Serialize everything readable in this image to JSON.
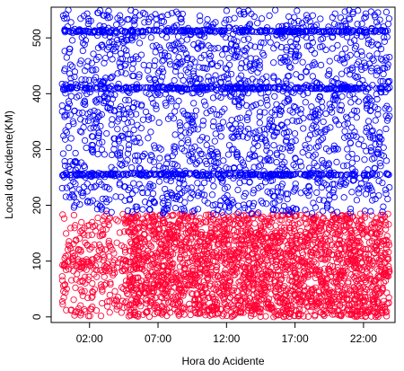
{
  "chart_data": {
    "type": "scatter",
    "xlabel": "Hora do Acidente",
    "ylabel": "Local do Acidente(KM)",
    "x_unit": "hour of day",
    "xlim": [
      -0.8,
      24.3
    ],
    "ylim": [
      -10,
      555
    ],
    "x_ticks": [
      {
        "value": 2,
        "label": "02:00"
      },
      {
        "value": 7,
        "label": "07:00"
      },
      {
        "value": 12,
        "label": "12:00"
      },
      {
        "value": 17,
        "label": "17:00"
      },
      {
        "value": 22,
        "label": "22:00"
      }
    ],
    "y_ticks": [
      0,
      100,
      200,
      300,
      400,
      500
    ],
    "grid": false,
    "marker": "open-circle",
    "series": [
      {
        "color": "#FF0033",
        "y_range": [
          0,
          185
        ],
        "x_range": [
          0,
          23.9
        ],
        "sample_points": [
          [
            0.3,
            12
          ],
          [
            0.8,
            95
          ],
          [
            1.5,
            150
          ],
          [
            2.2,
            60
          ],
          [
            3.1,
            180
          ],
          [
            3.8,
            30
          ],
          [
            4.6,
            120
          ],
          [
            5.2,
            85
          ],
          [
            6.0,
            170
          ],
          [
            6.7,
            45
          ],
          [
            7.4,
            10
          ],
          [
            8.1,
            140
          ],
          [
            8.9,
            75
          ],
          [
            9.6,
            165
          ],
          [
            10.3,
            25
          ],
          [
            11.0,
            110
          ],
          [
            11.8,
            55
          ],
          [
            12.5,
            180
          ],
          [
            13.2,
            90
          ],
          [
            14.0,
            5
          ],
          [
            14.7,
            135
          ],
          [
            15.5,
            65
          ],
          [
            16.2,
            160
          ],
          [
            17.0,
            40
          ],
          [
            17.7,
            100
          ],
          [
            18.4,
            175
          ],
          [
            19.2,
            20
          ],
          [
            19.9,
            125
          ],
          [
            20.6,
            70
          ],
          [
            21.4,
            155
          ],
          [
            22.1,
            35
          ],
          [
            22.8,
            115
          ],
          [
            23.5,
            80
          ]
        ]
      },
      {
        "color": "#0000FF",
        "y_range": [
          185,
          550
        ],
        "x_range": [
          0,
          23.9
        ],
        "dense_bands_km": [
          255,
          410,
          512
        ],
        "sample_points": [
          [
            0.4,
            520
          ],
          [
            1.1,
            410
          ],
          [
            1.9,
            255
          ],
          [
            2.7,
            330
          ],
          [
            3.5,
            470
          ],
          [
            4.3,
            215
          ],
          [
            5.0,
            512
          ],
          [
            5.8,
            380
          ],
          [
            6.5,
            290
          ],
          [
            7.3,
            430
          ],
          [
            8.0,
            250
          ],
          [
            8.8,
            512
          ],
          [
            9.5,
            355
          ],
          [
            10.2,
            410
          ],
          [
            11.0,
            200
          ],
          [
            11.7,
            470
          ],
          [
            12.4,
            300
          ],
          [
            13.2,
            512
          ],
          [
            13.9,
            255
          ],
          [
            14.6,
            410
          ],
          [
            15.4,
            340
          ],
          [
            16.1,
            500
          ],
          [
            16.9,
            225
          ],
          [
            17.6,
            410
          ],
          [
            18.3,
            540
          ],
          [
            19.1,
            275
          ],
          [
            19.8,
            390
          ],
          [
            20.5,
            512
          ],
          [
            21.3,
            245
          ],
          [
            22.0,
            410
          ],
          [
            22.7,
            320
          ],
          [
            23.4,
            512
          ]
        ]
      }
    ]
  }
}
